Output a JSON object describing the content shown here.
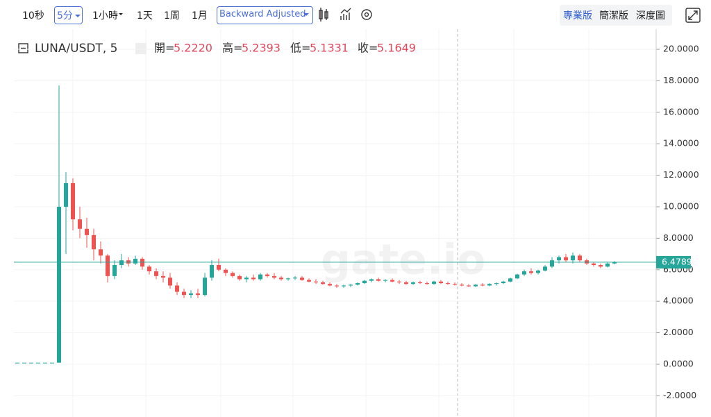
{
  "toolbar": {
    "intervals": [
      "10秒",
      "5分",
      "1小時",
      "1天",
      "1周",
      "1月"
    ],
    "adjust": "Backward Adjusted",
    "views": [
      "專業版",
      "簡潔版",
      "深度圖"
    ]
  },
  "chart_data": {
    "type": "candlestick",
    "symbol": "LUNA/USDT, 5",
    "ohlc_legend": [
      {
        "label": "開=",
        "value": "5.2220"
      },
      {
        "label": "高=",
        "value": "5.2393"
      },
      {
        "label": "低=",
        "value": "5.1331"
      },
      {
        "label": "收=",
        "value": "5.1649"
      }
    ],
    "watermark": "gate.io",
    "up_color": "#26a69a",
    "down_color": "#ef5350",
    "open": [
      0.1,
      0.1,
      0.1,
      0.1,
      0.1,
      0.1,
      0.1,
      10.0,
      11.5,
      9.2,
      8.6,
      8.2,
      7.3,
      6.9,
      5.6,
      6.3,
      6.6,
      6.4,
      6.7,
      6.2,
      5.9,
      5.6,
      5.5,
      5.0,
      4.6,
      4.4,
      4.5,
      4.4,
      5.5,
      6.3,
      6.0,
      5.8,
      5.6,
      5.4,
      5.5,
      5.4,
      5.7,
      5.6,
      5.5,
      5.4,
      5.45,
      5.5,
      5.35,
      5.25,
      5.2,
      5.1,
      5.0,
      4.95,
      5.0,
      5.05,
      5.15,
      5.3,
      5.4,
      5.3,
      5.35,
      5.25,
      5.2,
      5.1,
      5.2,
      5.15,
      5.1,
      5.25,
      5.15,
      5.1,
      5.05,
      5.0,
      4.95,
      5.05,
      5.0,
      5.1,
      5.15,
      5.25,
      5.45,
      5.7,
      5.9,
      5.8,
      5.95,
      6.2,
      6.6,
      6.8,
      6.6,
      6.9,
      6.6,
      6.4,
      6.3,
      6.2,
      6.4
    ],
    "high": [
      0.1,
      0.1,
      0.1,
      0.1,
      0.1,
      0.1,
      17.7,
      12.2,
      11.8,
      10.0,
      9.3,
      8.6,
      7.8,
      7.0,
      6.6,
      7.0,
      6.8,
      6.9,
      6.8,
      6.3,
      6.1,
      5.9,
      5.8,
      5.2,
      4.8,
      4.7,
      4.8,
      5.8,
      6.6,
      6.7,
      6.1,
      5.9,
      5.7,
      5.6,
      5.7,
      5.8,
      5.8,
      5.8,
      5.6,
      5.5,
      5.6,
      5.6,
      5.45,
      5.4,
      5.3,
      5.2,
      5.1,
      5.05,
      5.1,
      5.2,
      5.35,
      5.45,
      5.5,
      5.4,
      5.45,
      5.35,
      5.3,
      5.25,
      5.3,
      5.25,
      5.3,
      5.35,
      5.25,
      5.2,
      5.15,
      5.1,
      5.1,
      5.15,
      5.15,
      5.2,
      5.3,
      5.5,
      5.75,
      6.0,
      6.1,
      6.0,
      6.3,
      6.8,
      6.9,
      7.0,
      7.1,
      7.0,
      6.7,
      6.5,
      6.4,
      6.45,
      6.55
    ],
    "low": [
      0.1,
      0.1,
      0.1,
      0.1,
      0.1,
      0.1,
      0.1,
      7.0,
      8.5,
      8.0,
      7.4,
      6.6,
      6.4,
      5.2,
      5.4,
      6.1,
      6.2,
      6.3,
      6.0,
      5.7,
      5.4,
      5.2,
      4.8,
      4.4,
      4.2,
      4.2,
      4.2,
      4.3,
      5.3,
      5.9,
      5.6,
      5.5,
      5.3,
      5.2,
      5.3,
      5.3,
      5.5,
      5.4,
      5.3,
      5.3,
      5.35,
      5.3,
      5.2,
      5.1,
      5.05,
      4.95,
      4.85,
      4.85,
      4.9,
      5.0,
      5.1,
      5.2,
      5.25,
      5.2,
      5.2,
      5.1,
      5.05,
      5.05,
      5.1,
      5.05,
      5.05,
      5.1,
      5.05,
      5.0,
      4.95,
      4.9,
      4.9,
      4.95,
      4.95,
      5.0,
      5.1,
      5.2,
      5.4,
      5.6,
      5.7,
      5.7,
      5.9,
      6.1,
      6.4,
      6.5,
      6.4,
      6.5,
      6.3,
      6.2,
      6.1,
      6.15,
      6.35
    ],
    "close": [
      0.1,
      0.1,
      0.1,
      0.1,
      0.1,
      0.1,
      10.0,
      11.5,
      9.2,
      8.6,
      8.2,
      7.3,
      6.9,
      5.6,
      6.3,
      6.6,
      6.4,
      6.7,
      6.2,
      5.9,
      5.6,
      5.5,
      5.0,
      4.6,
      4.4,
      4.5,
      4.4,
      5.5,
      6.3,
      6.0,
      5.8,
      5.6,
      5.4,
      5.5,
      5.4,
      5.7,
      5.6,
      5.5,
      5.4,
      5.45,
      5.5,
      5.35,
      5.25,
      5.2,
      5.1,
      5.0,
      4.95,
      5.0,
      5.05,
      5.15,
      5.3,
      5.4,
      5.3,
      5.35,
      5.25,
      5.2,
      5.1,
      5.2,
      5.15,
      5.1,
      5.25,
      5.15,
      5.1,
      5.05,
      5.0,
      4.95,
      5.05,
      5.0,
      5.1,
      5.15,
      5.25,
      5.45,
      5.7,
      5.9,
      5.8,
      5.95,
      6.2,
      6.6,
      6.8,
      6.6,
      6.9,
      6.6,
      6.4,
      6.3,
      6.2,
      6.4,
      6.4789
    ],
    "last_price": 6.4789,
    "ylim": [
      -3.35,
      21.28
    ],
    "yticks": [
      {
        "value": 20,
        "label": "20.0000"
      },
      {
        "value": 18,
        "label": "18.0000"
      },
      {
        "value": 16,
        "label": "16.0000"
      },
      {
        "value": 14,
        "label": "14.0000"
      },
      {
        "value": 12,
        "label": "12.0000"
      },
      {
        "value": 10,
        "label": "10.0000"
      },
      {
        "value": 8,
        "label": "8.0000"
      },
      {
        "value": 6,
        "label": "6.0000"
      },
      {
        "value": 4,
        "label": "4.0000"
      },
      {
        "value": 2,
        "label": "2.0000"
      },
      {
        "value": 0,
        "label": "0.0000"
      },
      {
        "value": -2,
        "label": "-2.0000"
      }
    ],
    "grid": true
  }
}
